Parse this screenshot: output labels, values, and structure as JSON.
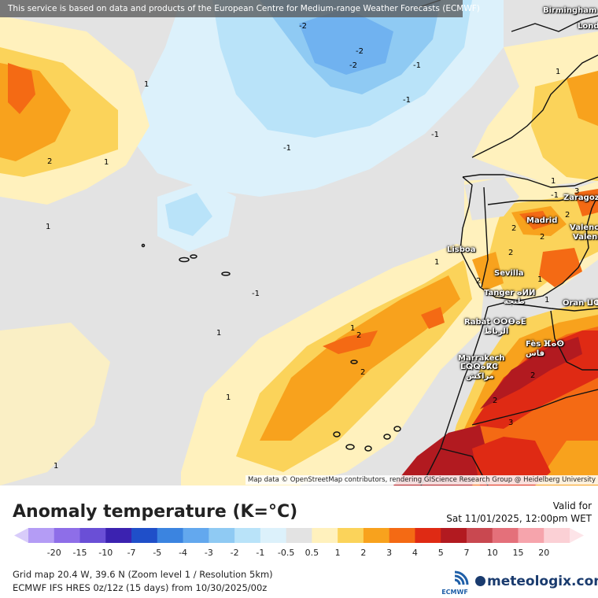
{
  "banner": "This service is based on data and products of the European Centre for Medium-range Weather Forecasts (ECMWF)",
  "attribution": "Map data © OpenStreetMap contributors, rendering GIScience Research Group @ Heidelberg University",
  "cities": {
    "birmingham": "Birmingham",
    "london": "Lond",
    "zaragoza": "Zaragoza",
    "madrid": "Madrid",
    "valencia1": "Valenc",
    "valencia2": "Valenc",
    "lisboa": "Lisboa",
    "sevilla": "Sevilla",
    "tanger": "Tanger ⴰⵍⵍ",
    "tanger_ar": "طنجة",
    "oran": "Oran ⵡⵀ",
    "rabat": "Rabat ⵔⵔⴱⴰⴹ",
    "rabat_ar": "الرباط",
    "fes": "Fès ⴼⴰⵙ",
    "fes_ar": "فاس",
    "marrakech": "Marrakech",
    "marrakech_tz": "ⵎⵕⵕⴰⴽⵛ",
    "marrakech_ar": "مراكش"
  },
  "contour_labels": [
    "-2",
    "-2",
    "-2",
    "-1",
    "-1",
    "-1",
    "-1",
    "1",
    "1",
    "1",
    "1",
    "1",
    "1",
    "1",
    "1",
    "2",
    "2",
    "2",
    "2",
    "2",
    "2",
    "2",
    "1",
    "3",
    "1",
    "1",
    "1",
    "-1",
    "-1",
    "2",
    "3",
    "2",
    "2"
  ],
  "legend": {
    "title": "Anomaly temperature (K=°C)",
    "valid_label": "Valid for",
    "valid_time": "Sat 11/01/2025, 12:00pm WET",
    "ticks": [
      "-20",
      "-15",
      "-10",
      "-7",
      "-5",
      "-4",
      "-3",
      "-2",
      "-1",
      "-0.5",
      "0.5",
      "1",
      "2",
      "3",
      "4",
      "5",
      "7",
      "10",
      "15",
      "20"
    ],
    "colors": [
      "#b49cf5",
      "#8e6ee8",
      "#6a4fd6",
      "#3b22b0",
      "#1f4fc9",
      "#3b84e0",
      "#63a8ee",
      "#8fcaf3",
      "#b9e3f9",
      "#dcf1fb",
      "#e3e3e3",
      "#fff1bd",
      "#fbd35a",
      "#f8a21d",
      "#f46a14",
      "#df2a14",
      "#b21a20",
      "#c94850",
      "#e4707a",
      "#f6a4ac"
    ]
  },
  "footer": {
    "grid": "Grid map 20.4 W, 39.6 N (Zoom level 1 / Resolution 5km)",
    "model": "ECMWF IFS HRES 0z/12z (15 days) from 10/30/2025/00z",
    "ecmwf": "ECMWF",
    "brand": "meteologix.com"
  }
}
